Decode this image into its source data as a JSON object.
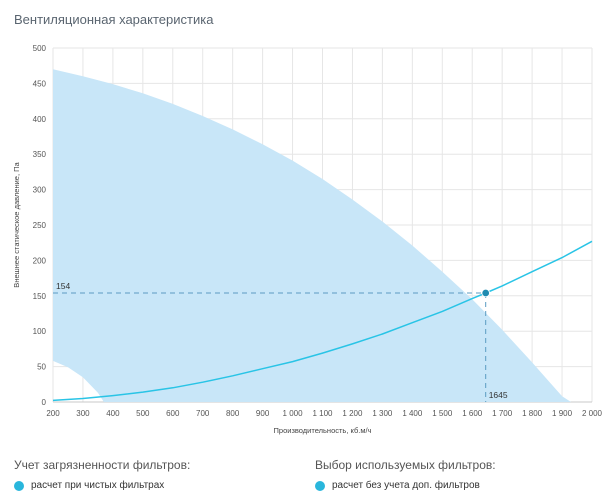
{
  "title": "Вентиляционная характеристика",
  "chart_data": {
    "type": "line",
    "xlabel": "Производительность, кб.м/ч",
    "ylabel": "Внешнее статическое давление, Па",
    "xlim": [
      200,
      2000
    ],
    "ylim": [
      0,
      500
    ],
    "xticks": [
      200,
      300,
      400,
      500,
      600,
      700,
      800,
      900,
      1000,
      1100,
      1200,
      1300,
      1400,
      1500,
      1600,
      1700,
      1800,
      1900,
      2000
    ],
    "xtick_labels": [
      "200",
      "300",
      "400",
      "500",
      "600",
      "700",
      "800",
      "900",
      "1 000",
      "1 100",
      "1 200",
      "1 300",
      "1 400",
      "1 500",
      "1 600",
      "1 700",
      "1 800",
      "1 900",
      "2 000"
    ],
    "yticks": [
      0,
      50,
      100,
      150,
      200,
      250,
      300,
      350,
      400,
      450,
      500
    ],
    "ytick_labels": [
      "0",
      "50",
      "100",
      "150",
      "200",
      "250",
      "300",
      "350",
      "400",
      "450",
      "500"
    ],
    "grid": true,
    "series": [
      {
        "kind": "area",
        "color": "#c8e6f8",
        "upper": {
          "x": [
            200,
            300,
            400,
            500,
            600,
            700,
            800,
            900,
            1000,
            1100,
            1200,
            1300,
            1400,
            1500,
            1600,
            1700,
            1800,
            1900,
            1930
          ],
          "y": [
            470,
            460,
            449,
            436,
            421,
            404,
            385,
            364,
            341,
            315,
            286,
            255,
            221,
            184,
            145,
            102,
            56,
            8,
            0
          ]
        },
        "lower": {
          "x": [
            200,
            250,
            300,
            350,
            370
          ],
          "y": [
            58,
            49,
            35,
            13,
            0
          ]
        }
      },
      {
        "kind": "line",
        "color": "#29c4e6",
        "x": [
          200,
          300,
          400,
          500,
          600,
          700,
          800,
          900,
          1000,
          1100,
          1200,
          1300,
          1400,
          1500,
          1600,
          1645,
          1700,
          1800,
          1900,
          2000
        ],
        "y": [
          2.2,
          5,
          9,
          14,
          20,
          28,
          37,
          47,
          57,
          69,
          82,
          96,
          112,
          128,
          146,
          154,
          164,
          184,
          204,
          227
        ]
      }
    ],
    "operating_point": {
      "x": 1645,
      "y": 154,
      "x_label": "1645",
      "y_label": "154",
      "color": "#1f8bb0"
    }
  },
  "filters_contamination": {
    "title": "Учет загрязненности фильтров:",
    "option": "расчет при чистых фильтрах"
  },
  "filters_selection": {
    "title": "Выбор используемых фильтров:",
    "option": "расчет без учета доп. фильтров"
  }
}
